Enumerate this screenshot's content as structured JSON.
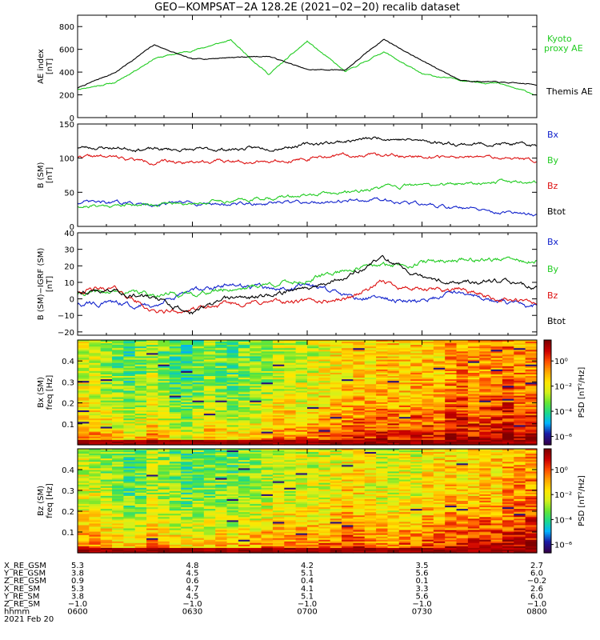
{
  "title": "GEO−KOMPSAT−2A 128.2E (2021−02−20) recalib dataset",
  "colors": {
    "black": "#000000",
    "green": "#22cc22",
    "red": "#dd1111",
    "blue": "#1122cc",
    "colorbar": [
      "#33004d",
      "#1a1aa6",
      "#00b3ff",
      "#1ad98c",
      "#66e633",
      "#d4f01a",
      "#ffe600",
      "#ffa600",
      "#ff4d00",
      "#cc0000",
      "#800000"
    ]
  },
  "time_ticks": [
    "0600",
    "0630",
    "0700",
    "0730",
    "0800"
  ],
  "chart_data": [
    {
      "type": "line",
      "panel": "ae",
      "ylabel": "AE index\n[nT]",
      "ylim": [
        0,
        900
      ],
      "yticks": [
        "0",
        "200",
        "400",
        "600",
        "800"
      ],
      "x": [
        "0600",
        "0610",
        "0620",
        "0630",
        "0640",
        "0650",
        "0700",
        "0710",
        "0720",
        "0730",
        "0740",
        "0750",
        "0800"
      ],
      "series": [
        {
          "name": "Themis AE",
          "color": "#000000",
          "values": [
            260,
            400,
            640,
            510,
            530,
            540,
            420,
            420,
            690,
            500,
            330,
            310,
            290
          ]
        },
        {
          "name": "Kyoto\nproxy AE",
          "color": "#22cc22",
          "values": [
            250,
            310,
            520,
            590,
            680,
            380,
            670,
            400,
            580,
            380,
            330,
            300,
            200
          ]
        }
      ],
      "labels": {
        "themis": "Themis AE",
        "kyoto_1": "Kyoto",
        "kyoto_2": "proxy AE"
      }
    },
    {
      "type": "line",
      "panel": "b_sm",
      "ylabel": "B (SM)\n[nT]",
      "ylim": [
        0,
        150
      ],
      "yticks": [
        "0",
        "50",
        "100",
        "150"
      ],
      "series": [
        {
          "name": "Bx",
          "color": "#1122cc",
          "values": [
            35,
            34,
            33,
            34,
            33,
            33,
            35,
            38,
            40,
            32,
            26,
            20,
            16
          ]
        },
        {
          "name": "By",
          "color": "#22cc22",
          "values": [
            30,
            31,
            33,
            35,
            38,
            42,
            45,
            50,
            57,
            60,
            63,
            66,
            65
          ]
        },
        {
          "name": "Bz",
          "color": "#dd1111",
          "values": [
            103,
            101,
            94,
            95,
            96,
            96,
            100,
            104,
            104,
            103,
            101,
            101,
            96
          ]
        },
        {
          "name": "Btot",
          "color": "#000000",
          "values": [
            116,
            115,
            113,
            112,
            113,
            115,
            120,
            125,
            130,
            125,
            121,
            121,
            118
          ]
        }
      ],
      "labels": {
        "bx": "Bx",
        "by": "By",
        "bz": "Bz",
        "btot": "Btot"
      }
    },
    {
      "type": "line",
      "panel": "b_igrf",
      "ylabel": "B (SM)−IGRF (SM)\n[nT]",
      "ylim": [
        -22,
        40
      ],
      "yticks": [
        "−20",
        "−10",
        "0",
        "10",
        "20",
        "30",
        "40"
      ],
      "series": [
        {
          "name": "Bx",
          "color": "#1122cc",
          "values": [
            -3,
            -3,
            -4,
            5,
            8,
            6,
            8,
            2,
            0,
            -2,
            5,
            -2,
            -5
          ]
        },
        {
          "name": "By",
          "color": "#22cc22",
          "values": [
            3,
            4,
            3,
            3,
            6,
            9,
            11,
            18,
            20,
            22,
            24,
            24,
            22
          ]
        },
        {
          "name": "Bz",
          "color": "#dd1111",
          "values": [
            5,
            6,
            -8,
            -7,
            -3,
            -2,
            -2,
            0,
            10,
            5,
            6,
            0,
            -3
          ]
        },
        {
          "name": "Btot",
          "color": "#000000",
          "values": [
            5,
            5,
            0,
            -8,
            0,
            2,
            7,
            13,
            25,
            12,
            10,
            10,
            7
          ]
        }
      ],
      "labels": {
        "bx": "Bx",
        "by": "By",
        "bz": "Bz",
        "btot": "Btot"
      }
    },
    {
      "type": "heatmap",
      "panel": "bx_psd",
      "ylabel_1": "Bx (SM)",
      "ylabel_2": "freq [Hz]",
      "ylim": [
        0,
        0.5
      ],
      "yticks": [
        "0.1",
        "0.2",
        "0.3",
        "0.4"
      ],
      "colorbar_label": "PSD [nT²/Hz]",
      "colorbar_ticks": [
        "10⁰",
        "10⁻²",
        "10⁻⁴",
        "10⁻⁶"
      ],
      "intensity_by_time": [
        0.62,
        0.6,
        0.55,
        0.5,
        0.45,
        0.5,
        0.58,
        0.5,
        0.45,
        0.42,
        0.48,
        0.55,
        0.5,
        0.48,
        0.5,
        0.52,
        0.55,
        0.6,
        0.62,
        0.6,
        0.62,
        0.65,
        0.68,
        0.7,
        0.72,
        0.7,
        0.75,
        0.73,
        0.72,
        0.74,
        0.75,
        0.72,
        0.8,
        0.82,
        0.78,
        0.8,
        0.82,
        0.85,
        0.8,
        0.82
      ],
      "low_freq_boost": 0.3
    },
    {
      "type": "heatmap",
      "panel": "bz_psd",
      "ylabel_1": "Bz (SM)",
      "ylabel_2": "freq [Hz]",
      "ylim": [
        0,
        0.5
      ],
      "yticks": [
        "0.1",
        "0.2",
        "0.3",
        "0.4"
      ],
      "colorbar_label": "PSD [nT²/Hz]",
      "colorbar_ticks": [
        "10⁰",
        "10⁻²",
        "10⁻⁴",
        "10⁻⁶"
      ],
      "intensity_by_time": [
        0.62,
        0.6,
        0.55,
        0.52,
        0.45,
        0.48,
        0.58,
        0.55,
        0.5,
        0.45,
        0.5,
        0.5,
        0.52,
        0.48,
        0.52,
        0.55,
        0.58,
        0.6,
        0.6,
        0.62,
        0.6,
        0.62,
        0.65,
        0.7,
        0.68,
        0.65,
        0.62,
        0.6,
        0.65,
        0.62,
        0.68,
        0.7,
        0.72,
        0.7,
        0.72,
        0.75,
        0.72,
        0.78,
        0.8,
        0.82
      ],
      "low_freq_boost": 0.32
    }
  ],
  "ephemeris": {
    "rows": [
      {
        "label": "X_RE_GSM",
        "values": [
          "5.3",
          "4.8",
          "4.2",
          "3.5",
          "2.7"
        ]
      },
      {
        "label": "Y_RE_GSM",
        "values": [
          "3.8",
          "4.5",
          "5.1",
          "5.6",
          "6.0"
        ]
      },
      {
        "label": "Z_RE_GSM",
        "values": [
          "0.9",
          "0.6",
          "0.4",
          "0.1",
          "−0.2"
        ]
      },
      {
        "label": "X_RE_SM",
        "values": [
          "5.3",
          "4.7",
          "4.1",
          "3.3",
          "2.6"
        ]
      },
      {
        "label": "Y_RE_SM",
        "values": [
          "3.8",
          "4.5",
          "5.1",
          "5.6",
          "6.0"
        ]
      },
      {
        "label": "Z_RE_SM",
        "values": [
          "−1.0",
          "−1.0",
          "−1.0",
          "−1.0",
          "−1.0"
        ]
      },
      {
        "label": "hhmm",
        "values": [
          "0600",
          "0630",
          "0700",
          "0730",
          "0800"
        ]
      }
    ],
    "date": "2021 Feb 20"
  }
}
